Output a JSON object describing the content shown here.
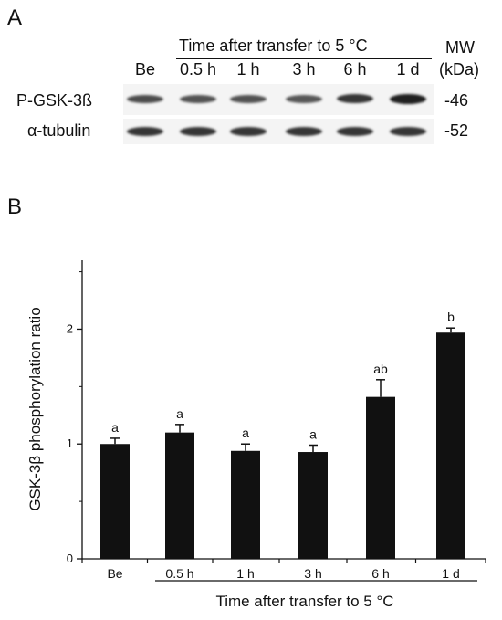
{
  "panel_a": {
    "letter": "A",
    "header": "Time after transfer to 5 °C",
    "mw_label": "MW",
    "mw_unit": "(kDa)",
    "lanes": [
      "Be",
      "0.5 h",
      "1 h",
      "3 h",
      "6 h",
      "1 d"
    ],
    "rows": [
      {
        "label": "P-GSK-3ß",
        "mw": "-46",
        "intensity": [
          0.75,
          0.72,
          0.72,
          0.7,
          0.85,
          0.95
        ]
      },
      {
        "label": "α-tubulin",
        "mw": "-52",
        "intensity": [
          0.85,
          0.85,
          0.85,
          0.85,
          0.85,
          0.85
        ]
      }
    ]
  },
  "panel_b": {
    "letter": "B"
  },
  "chart_data": {
    "type": "bar",
    "categories": [
      "Be",
      "0.5 h",
      "1 h",
      "3 h",
      "6 h",
      "1 d"
    ],
    "values": [
      1.0,
      1.1,
      0.94,
      0.93,
      1.41,
      1.97
    ],
    "errors": [
      0.05,
      0.07,
      0.06,
      0.06,
      0.15,
      0.04
    ],
    "significance": [
      "a",
      "a",
      "a",
      "a",
      "ab",
      "b"
    ],
    "ylabel": "GSK-3β phosphorylation ratio",
    "xlabel": "Time after transfer to 5 °C",
    "ylim": [
      0,
      2.6
    ],
    "yticks": [
      0,
      1,
      2
    ],
    "bar_color": "#111111",
    "grid": false,
    "legend": "none"
  }
}
